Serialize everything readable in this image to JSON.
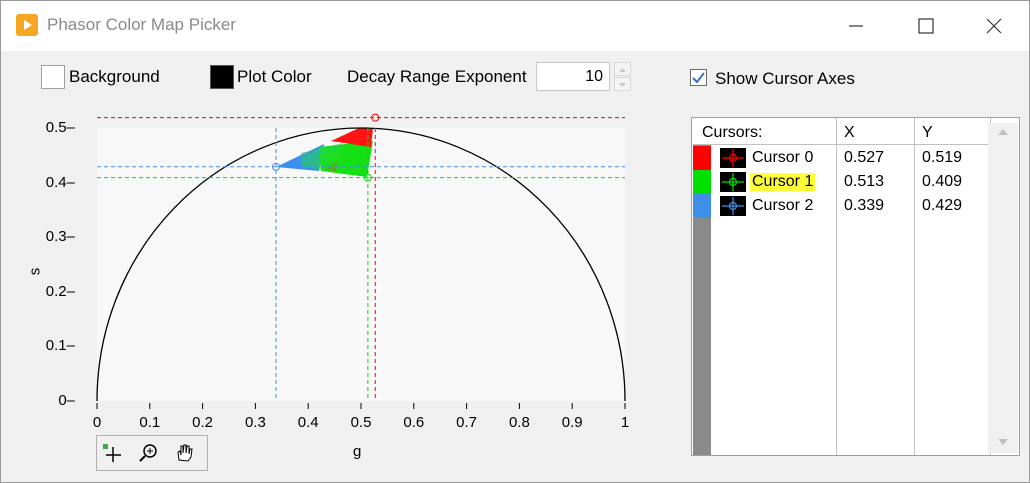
{
  "window": {
    "title": "Phasor Color Map Picker",
    "accent_icon_color": "#f5a623"
  },
  "toolbar": {
    "background_label": "Background",
    "background_color": "#ffffff",
    "plot_color_label": "Plot Color",
    "plot_color": "#000000",
    "decay_label": "Decay Range Exponent",
    "decay_value": "10",
    "show_axes_label": "Show Cursor Axes",
    "show_axes_checked": true
  },
  "plot": {
    "xlabel": "g",
    "ylabel": "s",
    "yticks": [
      "0.5",
      "0.4",
      "0.3",
      "0.2",
      "0.1",
      "0"
    ],
    "xticks": [
      "0",
      "0.1",
      "0.2",
      "0.3",
      "0.4",
      "0.5",
      "0.6",
      "0.7",
      "0.8",
      "0.9",
      "1"
    ],
    "palette_icons": [
      "cursor-tool-icon",
      "zoom-tool-icon",
      "pan-hand-icon"
    ]
  },
  "chart_data": {
    "type": "scatter",
    "xlim": [
      0,
      1
    ],
    "ylim": [
      0,
      0.5
    ],
    "grid": false,
    "series": [
      {
        "name": "Cursor 0",
        "color": "#ff0000",
        "x": [
          0.527
        ],
        "y": [
          0.519
        ]
      },
      {
        "name": "Cursor 1",
        "color": "#00e000",
        "x": [
          0.513
        ],
        "y": [
          0.409
        ]
      },
      {
        "name": "Cursor 2",
        "color": "#3f8fe8",
        "x": [
          0.339
        ],
        "y": [
          0.429
        ]
      }
    ]
  },
  "cursors_table": {
    "headers": [
      "Cursors:",
      "X",
      "Y"
    ],
    "rows": [
      {
        "name": "Cursor 0",
        "x": "0.527",
        "y": "0.519",
        "color": "#ff0000",
        "highlighted": false
      },
      {
        "name": "Cursor 1",
        "x": "0.513",
        "y": "0.409",
        "color": "#00e000",
        "highlighted": true
      },
      {
        "name": "Cursor 2",
        "x": "0.339",
        "y": "0.429",
        "color": "#3f8fe8",
        "highlighted": false
      }
    ]
  }
}
